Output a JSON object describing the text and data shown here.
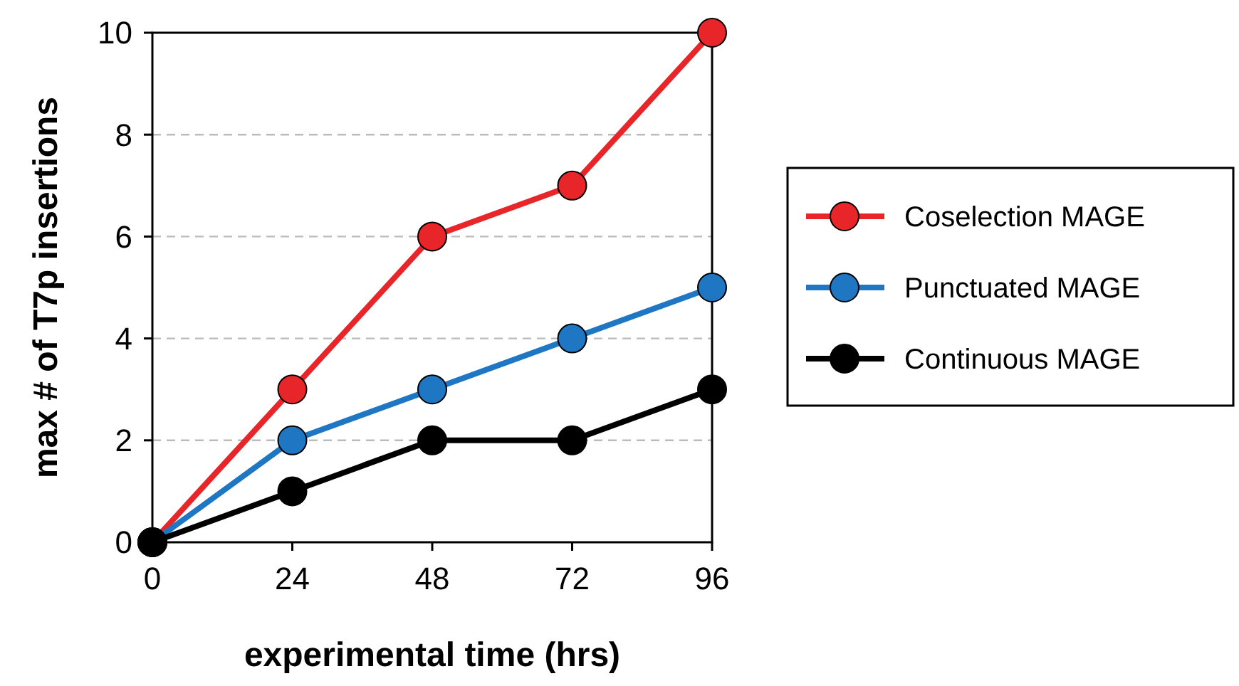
{
  "chart_data": {
    "type": "line",
    "xlabel": "experimental time (hrs)",
    "ylabel": "max # of T7p insertions",
    "x": [
      0,
      24,
      48,
      72,
      96
    ],
    "xlim": [
      0,
      96
    ],
    "xticks": [
      0,
      24,
      48,
      72,
      96
    ],
    "ylim": [
      0,
      10
    ],
    "yticks": [
      0,
      2,
      4,
      6,
      8,
      10
    ],
    "grid": "y",
    "legend": "right",
    "marker": "circle",
    "line_style": "solid",
    "series": [
      {
        "name": "Coselection MAGE",
        "color": "#e8262a",
        "values": [
          0,
          3,
          6,
          7,
          10
        ]
      },
      {
        "name": "Punctuated MAGE",
        "color": "#1f77c4",
        "values": [
          0,
          2,
          3,
          4,
          5
        ]
      },
      {
        "name": "Continuous MAGE",
        "color": "#000000",
        "values": [
          0,
          1,
          2,
          2,
          3
        ]
      }
    ]
  }
}
